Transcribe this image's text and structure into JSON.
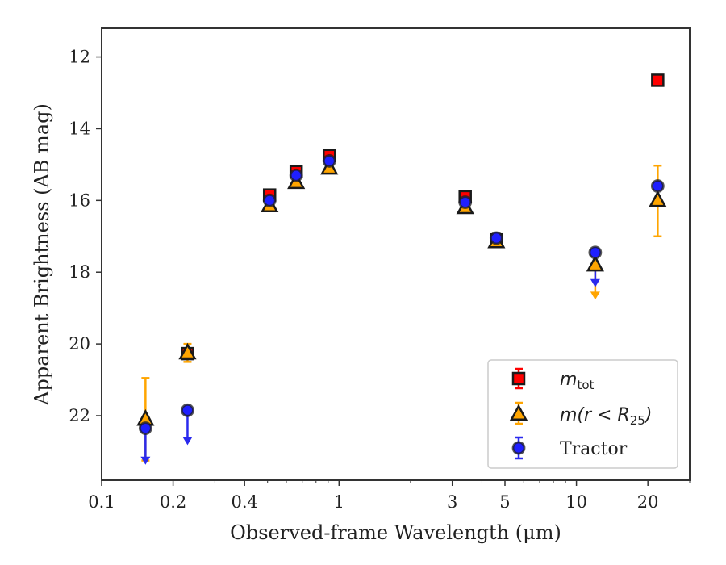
{
  "chart_data": {
    "type": "scatter",
    "title": "",
    "xlabel": "Observed-frame Wavelength (μm)",
    "ylabel": "Apparent Brightness (AB mag)",
    "xscale": "log",
    "xlim": [
      0.1,
      30
    ],
    "ylim": [
      23.8,
      11.2
    ],
    "y_inverted": true,
    "x_tick_labels": [
      "0.1",
      "0.2",
      "0.4",
      "1",
      "3",
      "5",
      "10",
      "20"
    ],
    "x_tick_values": [
      0.1,
      0.2,
      0.4,
      1,
      3,
      5,
      10,
      20
    ],
    "y_tick_labels": [
      "12",
      "14",
      "16",
      "18",
      "20",
      "22"
    ],
    "y_tick_values": [
      12,
      14,
      16,
      18,
      20,
      22
    ],
    "legend_position": "lower-right",
    "series": [
      {
        "name": "m_tot",
        "legend_label": "m",
        "legend_sub": "tot",
        "marker": "square",
        "color": "#ff0000",
        "errcolor": "#ff0000",
        "points": [
          {
            "x": 0.23,
            "y": 20.27,
            "err": 0.1
          },
          {
            "x": 0.51,
            "y": 15.85,
            "err": 0.1
          },
          {
            "x": 0.66,
            "y": 15.2,
            "err": 0.1
          },
          {
            "x": 0.91,
            "y": 14.75,
            "err": 0.1
          },
          {
            "x": 3.4,
            "y": 15.9,
            "err": 0.1
          },
          {
            "x": 4.6,
            "y": 17.1,
            "err": 0.05
          },
          {
            "x": 22,
            "y": 12.65,
            "err": 0.05
          }
        ]
      },
      {
        "name": "m(r<R25)",
        "legend_label": "m(r < R",
        "legend_sub": "25",
        "legend_tail": ")",
        "marker": "triangle",
        "color": "#ffa500",
        "errcolor": "#ffa500",
        "points": [
          {
            "x": 0.153,
            "y": 22.1,
            "err_lo": 1.15,
            "err_hi": 1.15
          },
          {
            "x": 0.23,
            "y": 20.25,
            "err_lo": 0.25,
            "err_hi": 0.25
          },
          {
            "x": 0.51,
            "y": 16.15,
            "err": 0.05
          },
          {
            "x": 0.66,
            "y": 15.5,
            "err": 0.05
          },
          {
            "x": 0.91,
            "y": 15.1,
            "err": 0.05
          },
          {
            "x": 3.4,
            "y": 16.2,
            "err": 0.05
          },
          {
            "x": 4.6,
            "y": 17.15,
            "err": 0.05
          },
          {
            "x": 12,
            "y": 17.8,
            "upper_limit_to": 18.7
          },
          {
            "x": 22,
            "y": 16.0,
            "err_lo": 0.97,
            "err_hi": 1.0
          }
        ]
      },
      {
        "name": "Tractor",
        "legend_label": "Tractor",
        "marker": "circle",
        "color": "#1f1fff",
        "errcolor": "#2a2aee",
        "points": [
          {
            "x": 0.153,
            "y": 22.35,
            "upper_limit_to": 23.3
          },
          {
            "x": 0.23,
            "y": 21.85,
            "upper_limit_to": 22.75
          },
          {
            "x": 0.51,
            "y": 16.0,
            "err": 0.05
          },
          {
            "x": 0.66,
            "y": 15.3,
            "err": 0.05
          },
          {
            "x": 0.91,
            "y": 14.9,
            "err": 0.05
          },
          {
            "x": 3.4,
            "y": 16.05,
            "err": 0.05
          },
          {
            "x": 4.6,
            "y": 17.05,
            "err": 0.05
          },
          {
            "x": 12,
            "y": 17.45,
            "upper_limit_to": 18.35
          },
          {
            "x": 22,
            "y": 15.6,
            "err": 0.1
          }
        ]
      }
    ]
  }
}
